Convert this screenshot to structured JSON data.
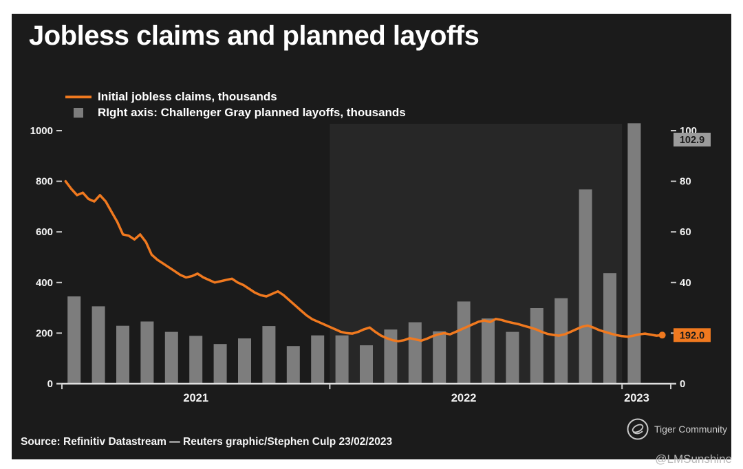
{
  "title": "Jobless claims and planned layoffs",
  "legend": [
    {
      "swatch": "line",
      "color": "#f0791f",
      "label": "Initial jobless claims, thousands"
    },
    {
      "swatch": "square",
      "color": "#7d7d7d",
      "label": "RIght axis: Challenger Gray planned layoffs, thousands"
    }
  ],
  "source": "Source: Refinitiv Datastream — Reuters graphic/Stephen Culp 23/02/2023",
  "watermark": {
    "text": "Tiger Community",
    "handle": "@LMSunshine"
  },
  "colors": {
    "panel_bg": "#1b1b1b",
    "band_2022": "#272727",
    "bar": "#7d7d7d",
    "line": "#f0791f",
    "axis_text": "#f2f2f2",
    "axis_line": "#e0e0e0",
    "badge_gray_bg": "#9c9c9c",
    "badge_orange_bg": "#f0791f",
    "badge_text": "#1b1b1b"
  },
  "chart_data": {
    "type": "combo",
    "title": "Jobless claims and planned layoffs",
    "months_span": 25,
    "left_axis": {
      "label": "Initial jobless claims, thousands",
      "min": 0,
      "max": 1000,
      "ticks": [
        0,
        200,
        400,
        600,
        800,
        1000
      ]
    },
    "right_axis": {
      "label": "Challenger Gray planned layoffs, thousands",
      "min": 0,
      "max": 100,
      "ticks": [
        0,
        20,
        40,
        60,
        80,
        100
      ]
    },
    "x_year_labels": [
      {
        "label": "2021",
        "month_pos": 5.5
      },
      {
        "label": "2022",
        "month_pos": 16.5
      },
      {
        "label": "2023",
        "month_pos": 23.6
      }
    ],
    "x_tick_months": [
      0,
      11,
      23,
      25
    ],
    "band_2022": {
      "from_month": 11,
      "to_month": 23
    },
    "bars": {
      "name": "Challenger Gray planned layoffs, thousands",
      "axis": "right",
      "type": "bar",
      "months": [
        "Feb 2021",
        "Mar 2021",
        "Apr 2021",
        "May 2021",
        "Jun 2021",
        "Jul 2021",
        "Aug 2021",
        "Sep 2021",
        "Oct 2021",
        "Nov 2021",
        "Dec 2021",
        "Jan 2022",
        "Feb 2022",
        "Mar 2022",
        "Apr 2022",
        "May 2022",
        "Jun 2022",
        "Jul 2022",
        "Aug 2022",
        "Sep 2022",
        "Oct 2022",
        "Nov 2022",
        "Dec 2022",
        "Jan 2023"
      ],
      "values": [
        34.5,
        30.6,
        22.9,
        24.6,
        20.5,
        18.9,
        15.7,
        17.9,
        22.8,
        14.9,
        19.1,
        19.1,
        15.2,
        21.4,
        24.3,
        20.7,
        32.5,
        25.8,
        20.5,
        29.9,
        33.8,
        76.8,
        43.7,
        102.9
      ]
    },
    "line": {
      "name": "Initial jobless claims, thousands",
      "axis": "left",
      "type": "line",
      "start_month": 0.15,
      "end_month": 24.65,
      "weekly_values": [
        800,
        770,
        745,
        755,
        730,
        720,
        745,
        720,
        680,
        640,
        590,
        585,
        570,
        590,
        560,
        510,
        490,
        475,
        460,
        445,
        430,
        420,
        425,
        435,
        420,
        410,
        400,
        405,
        410,
        415,
        400,
        390,
        375,
        360,
        350,
        345,
        355,
        365,
        350,
        330,
        310,
        290,
        270,
        255,
        245,
        235,
        225,
        215,
        205,
        200,
        198,
        205,
        215,
        222,
        205,
        190,
        180,
        172,
        168,
        172,
        180,
        175,
        170,
        178,
        188,
        195,
        200,
        195,
        205,
        215,
        225,
        235,
        245,
        250,
        244,
        256,
        252,
        245,
        240,
        235,
        228,
        222,
        215,
        205,
        197,
        193,
        190,
        195,
        205,
        215,
        225,
        230,
        222,
        212,
        205,
        198,
        192,
        188,
        186,
        190,
        195,
        198,
        194,
        190,
        192
      ],
      "last_value": 192.0
    },
    "annotations": [
      {
        "text": "102.9",
        "anchor": "right-axis-top",
        "bg": "#9c9c9c",
        "fg": "#1b1b1b"
      },
      {
        "text": "192.0",
        "anchor": "line-end",
        "value": 192.0,
        "bg": "#f0791f",
        "fg": "#1b1b1b"
      }
    ]
  }
}
